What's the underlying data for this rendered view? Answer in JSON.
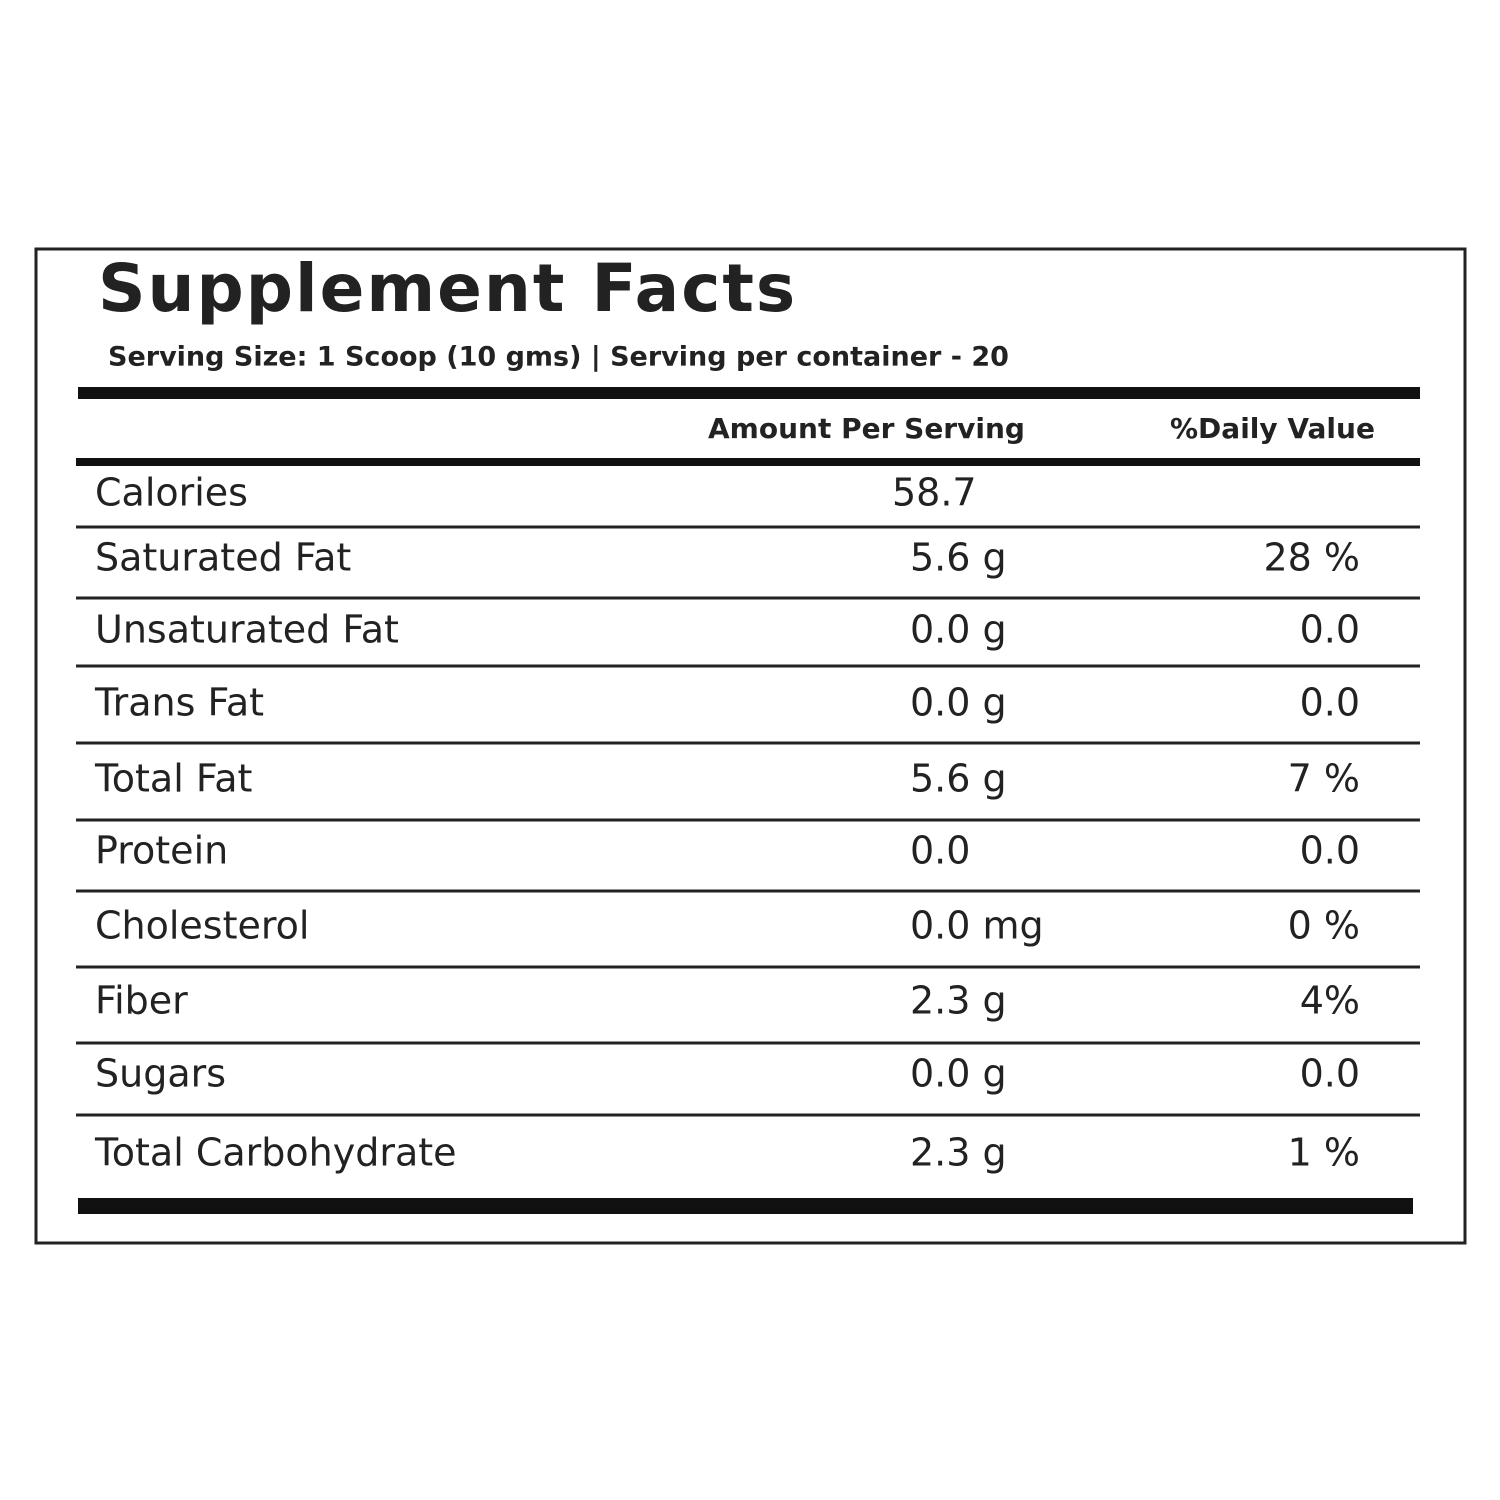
{
  "header": {
    "title": "Supplement Facts",
    "serving": "Serving Size: 1 Scoop (10 gms) | Serving per container - 20"
  },
  "table": {
    "columns": [
      "Amount Per Serving",
      "%Daily Value"
    ],
    "rows": [
      [
        "Calories",
        "58.7"
      ],
      [
        "Saturated Fat",
        "5.6 g",
        "28 %"
      ],
      [
        "Unsaturated Fat",
        "0.0 g",
        "0.0"
      ],
      [
        "Trans Fat",
        "0.0 g",
        "0.0"
      ],
      [
        "Total Fat",
        "5.6 g",
        "7 %"
      ],
      [
        "Protein",
        "0.0",
        "0.0"
      ],
      [
        "Cholesterol",
        "0.0 mg",
        "0 %"
      ],
      [
        "Fiber",
        "2.3 g",
        "4%"
      ],
      [
        "Sugars",
        "0.0 g",
        "0.0"
      ],
      [
        "Total Carbohydrate",
        "2.3 g",
        "1 %"
      ]
    ]
  }
}
